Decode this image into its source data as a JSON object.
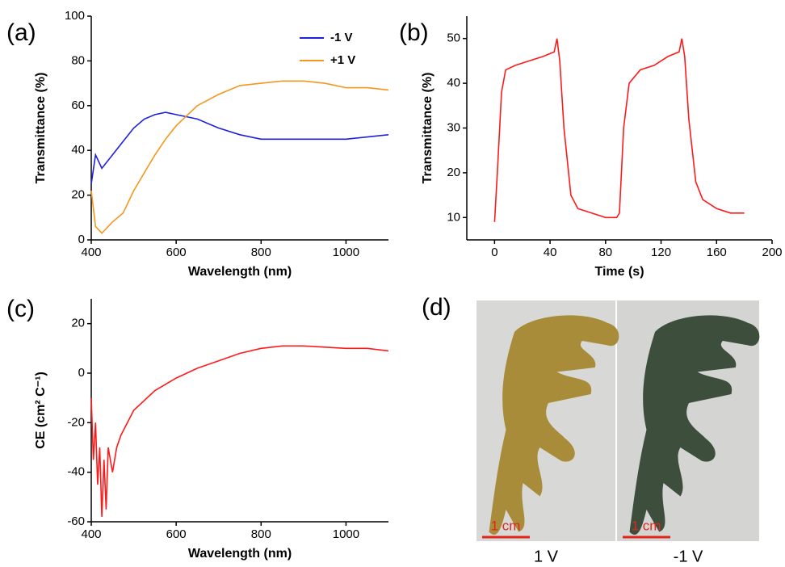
{
  "chart_data": [
    {
      "type": "line",
      "panel_label": "(a)",
      "xlabel": "Wavelength (nm)",
      "ylabel": "Transmittance (%)",
      "xlim": [
        400,
        1100
      ],
      "ylim": [
        0,
        100
      ],
      "xticks": [
        400,
        600,
        800,
        1000
      ],
      "yticks": [
        0,
        20,
        40,
        60,
        80,
        100
      ],
      "legend": "upper right",
      "x": [
        400,
        410,
        425,
        450,
        475,
        500,
        525,
        550,
        575,
        600,
        650,
        700,
        750,
        800,
        850,
        900,
        950,
        1000,
        1050,
        1100
      ],
      "series": [
        {
          "name": "-1 V",
          "color": "#1f1fe0",
          "values": [
            25,
            38,
            32,
            38,
            44,
            50,
            54,
            56,
            57,
            56,
            54,
            50,
            47,
            45,
            45,
            45,
            45,
            45,
            46,
            47
          ]
        },
        {
          "name": "+1 V",
          "color": "#f5961e",
          "values": [
            22,
            6,
            3,
            8,
            12,
            22,
            30,
            38,
            45,
            51,
            60,
            65,
            69,
            70,
            71,
            71,
            70,
            68,
            68,
            67
          ]
        }
      ]
    },
    {
      "type": "line",
      "panel_label": "(b)",
      "xlabel": "Time (s)",
      "ylabel": "Transmittance (%)",
      "xlim": [
        -20,
        200
      ],
      "ylim": [
        5,
        55
      ],
      "xticks": [
        0,
        40,
        80,
        120,
        160,
        200
      ],
      "yticks": [
        10,
        20,
        30,
        40,
        50
      ],
      "x": [
        0,
        2,
        5,
        8,
        15,
        25,
        35,
        43,
        45,
        47,
        50,
        55,
        60,
        70,
        80,
        88,
        90,
        93,
        97,
        105,
        115,
        125,
        133,
        135,
        137,
        140,
        145,
        150,
        160,
        170,
        180
      ],
      "series": [
        {
          "name": null,
          "color": "#ff1a1a",
          "values": [
            9,
            20,
            38,
            43,
            44,
            45,
            46,
            47,
            50,
            45,
            30,
            15,
            12,
            11,
            10,
            10,
            11,
            30,
            40,
            43,
            44,
            46,
            47,
            50,
            46,
            32,
            18,
            14,
            12,
            11,
            11
          ]
        }
      ]
    },
    {
      "type": "line",
      "panel_label": "(c)",
      "xlabel": "Wavelength (nm)",
      "ylabel": "CE (cm² C⁻¹)",
      "xlim": [
        400,
        1100
      ],
      "ylim": [
        -60,
        30
      ],
      "xticks": [
        400,
        600,
        800,
        1000
      ],
      "yticks": [
        -60,
        -40,
        -20,
        0,
        20
      ],
      "x": [
        400,
        405,
        410,
        415,
        420,
        425,
        430,
        435,
        440,
        450,
        460,
        470,
        500,
        550,
        600,
        650,
        700,
        750,
        800,
        850,
        900,
        950,
        1000,
        1050,
        1100
      ],
      "series": [
        {
          "name": null,
          "color": "#ff1a1a",
          "values": [
            -10,
            -35,
            -20,
            -45,
            -30,
            -58,
            -35,
            -55,
            -30,
            -40,
            -30,
            -25,
            -15,
            -7,
            -2,
            2,
            5,
            8,
            10,
            11,
            11,
            10.5,
            10,
            10,
            9
          ]
        }
      ]
    }
  ],
  "photo": {
    "panel_label": "(d)",
    "panels": [
      {
        "caption": "1 V",
        "scale": "1 cm"
      },
      {
        "caption": "-1 V",
        "scale": "1 cm"
      }
    ]
  }
}
